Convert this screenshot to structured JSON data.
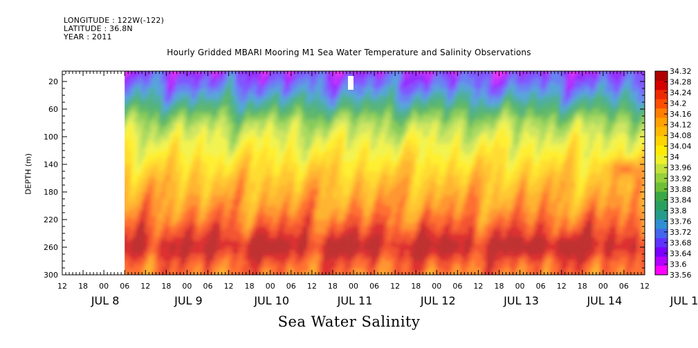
{
  "header": {
    "longitude": "LONGITUDE : 122W(-122)",
    "latitude": "LATITUDE : 36.8N",
    "year": "YEAR : 2011"
  },
  "chart_data": {
    "type": "heatmap",
    "title": "Hourly Gridded MBARI Mooring M1 Sea Water Temperature and Salinity Observations",
    "xlabel": "Sea Water Salinity",
    "ylabel": "DEPTH (m)",
    "ylim": [
      300,
      5
    ],
    "yticks": [
      20,
      60,
      100,
      140,
      180,
      220,
      260,
      300
    ],
    "x_hour_ticks": [
      "12",
      "18",
      "00",
      "06",
      "12",
      "18",
      "00",
      "06",
      "12",
      "18",
      "00",
      "06",
      "12",
      "18",
      "00",
      "06",
      "12",
      "18",
      "00",
      "06",
      "12",
      "18",
      "00",
      "06",
      "12",
      "18",
      "00",
      "06",
      "12",
      "18",
      "00",
      "06"
    ],
    "x_day_labels": [
      "JUL  8",
      "JUL  9",
      "JUL 10",
      "JUL 11",
      "JUL 12",
      "JUL 13",
      "JUL 14",
      "JUL 15"
    ],
    "data_start_hour": 18,
    "colorbar_levels": [
      "34.32",
      "34.28",
      "34.24",
      "34.2",
      "34.16",
      "34.12",
      "34.08",
      "34.04",
      "34",
      "33.96",
      "33.92",
      "33.88",
      "33.84",
      "33.8",
      "33.76",
      "33.72",
      "33.68",
      "33.64",
      "33.6",
      "33.56"
    ],
    "colormap": [
      "#ff00ff",
      "#b400ff",
      "#7a00ff",
      "#5f33ff",
      "#4466ee",
      "#2f8fd2",
      "#259c8a",
      "#2aa060",
      "#3aa845",
      "#6cbf36",
      "#95d13a",
      "#c4e03a",
      "#eef028",
      "#ffeb00",
      "#ffd400",
      "#ffba00",
      "#ffa200",
      "#ff7e00",
      "#ff4e00",
      "#f02a00",
      "#d50000",
      "#b00000"
    ],
    "depth_profile": [
      {
        "depth": 5,
        "value": 33.65
      },
      {
        "depth": 20,
        "value": 33.69
      },
      {
        "depth": 35,
        "value": 33.74
      },
      {
        "depth": 50,
        "value": 33.8
      },
      {
        "depth": 65,
        "value": 33.87
      },
      {
        "depth": 80,
        "value": 33.93
      },
      {
        "depth": 100,
        "value": 33.98
      },
      {
        "depth": 120,
        "value": 34.02
      },
      {
        "depth": 140,
        "value": 34.06
      },
      {
        "depth": 160,
        "value": 34.1
      },
      {
        "depth": 180,
        "value": 34.13
      },
      {
        "depth": 200,
        "value": 34.16
      },
      {
        "depth": 220,
        "value": 34.2
      },
      {
        "depth": 240,
        "value": 34.25
      },
      {
        "depth": 255,
        "value": 34.29
      },
      {
        "depth": 265,
        "value": 34.27
      },
      {
        "depth": 280,
        "value": 34.22
      },
      {
        "depth": 300,
        "value": 34.19
      }
    ],
    "features": [
      {
        "time_hours": 162,
        "depth": 145,
        "value": 34.19
      },
      {
        "time_hours": 180,
        "depth": 148,
        "value": 34.19
      },
      {
        "time_hours": 185,
        "depth": 147,
        "value": 34.17
      },
      {
        "time_hours": 58,
        "depth": 258,
        "value": 34.31
      },
      {
        "time_hours": 82,
        "depth": 256,
        "value": 34.31
      },
      {
        "time_hours": 110,
        "depth": 256,
        "value": 34.3
      },
      {
        "time_hours": 134,
        "depth": 258,
        "value": 34.3
      },
      {
        "time_hours": 146,
        "depth": 258,
        "value": 34.31
      },
      {
        "time_hours": 174,
        "depth": 262,
        "value": 34.31
      },
      {
        "time_hours": 192,
        "depth": 288,
        "value": 34.1
      }
    ]
  }
}
